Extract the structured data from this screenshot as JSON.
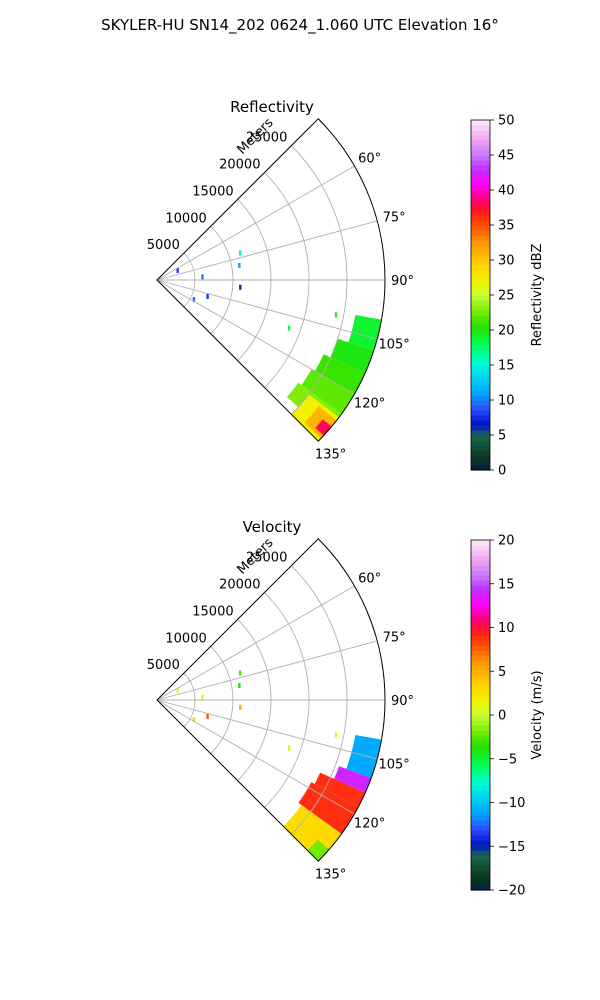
{
  "title": "SKYLER-HU  SN14_202  0624_1.060 UTC Elevation 16°",
  "chart_data": [
    {
      "type": "heatmap",
      "subtype": "polar-sector",
      "title": "Reflectivity",
      "radial_label": "Meters",
      "r_ticks": [
        "5000",
        "10000",
        "15000",
        "20000",
        "25000"
      ],
      "r_range": [
        0,
        30000
      ],
      "theta_range_deg": [
        45,
        135
      ],
      "theta_ticks": [
        "60°",
        "75°",
        "90°",
        "105°",
        "120°",
        "135°"
      ],
      "grid": true,
      "colorbar": {
        "label": "Reflectivity dBZ",
        "range": [
          0,
          50
        ],
        "ticks": [
          "0",
          "5",
          "10",
          "15",
          "20",
          "25",
          "30",
          "35",
          "40",
          "45",
          "50"
        ]
      },
      "echo_region": {
        "azimuth_deg": [
          103,
          135
        ],
        "range_m": [
          23000,
          30000
        ]
      },
      "regions": [
        {
          "azimuth_deg": [
            100,
            108
          ],
          "range_m": [
            26500,
            30000
          ],
          "value": 19
        },
        {
          "azimuth_deg": [
            108,
            114
          ],
          "range_m": [
            25000,
            30000
          ],
          "value": 20
        },
        {
          "azimuth_deg": [
            114,
            120
          ],
          "range_m": [
            24000,
            30000
          ],
          "value": 21
        },
        {
          "azimuth_deg": [
            120,
            126
          ],
          "range_m": [
            23500,
            30000
          ],
          "value": 22
        },
        {
          "azimuth_deg": [
            126,
            132
          ],
          "range_m": [
            23000,
            30000
          ],
          "value": 23
        },
        {
          "azimuth_deg": [
            127,
            135
          ],
          "range_m": [
            25000,
            30000
          ],
          "value": 27
        },
        {
          "azimuth_deg": [
            128,
            134
          ],
          "range_m": [
            27000,
            30000
          ],
          "value": 31
        },
        {
          "azimuth_deg": [
            130,
            133
          ],
          "range_m": [
            28500,
            30000
          ],
          "value": 38
        }
      ],
      "speckles": [
        {
          "azimuth_deg": 72,
          "range_m": 11500,
          "value": 17
        },
        {
          "azimuth_deg": 86,
          "range_m": 6000,
          "value": 10
        },
        {
          "azimuth_deg": 80,
          "range_m": 11000,
          "value": 11
        },
        {
          "azimuth_deg": 101,
          "range_m": 24000,
          "value": 19
        },
        {
          "azimuth_deg": 110,
          "range_m": 18500,
          "value": 18
        },
        {
          "azimuth_deg": 108,
          "range_m": 7000,
          "value": 8
        },
        {
          "azimuth_deg": 118,
          "range_m": 5500,
          "value": 9
        },
        {
          "azimuth_deg": 65,
          "range_m": 3000,
          "value": 8
        },
        {
          "azimuth_deg": 95,
          "range_m": 11000,
          "value": 6
        }
      ]
    },
    {
      "type": "heatmap",
      "subtype": "polar-sector",
      "title": "Velocity",
      "radial_label": "Meters",
      "r_ticks": [
        "5000",
        "10000",
        "15000",
        "20000",
        "25000"
      ],
      "r_range": [
        0,
        30000
      ],
      "theta_range_deg": [
        45,
        135
      ],
      "theta_ticks": [
        "60°",
        "75°",
        "90°",
        "105°",
        "120°",
        "135°"
      ],
      "grid": true,
      "colorbar": {
        "label": "Velocity (m/s)",
        "range": [
          -20,
          20
        ],
        "ticks": [
          "−20",
          "−15",
          "−10",
          "−5",
          "0",
          "5",
          "10",
          "15",
          "20"
        ]
      },
      "echo_region": {
        "azimuth_deg": [
          103,
          135
        ],
        "range_m": [
          23000,
          30000
        ]
      },
      "regions": [
        {
          "azimuth_deg": [
            100,
            110
          ],
          "range_m": [
            26500,
            30000
          ],
          "value": -11
        },
        {
          "azimuth_deg": [
            110,
            114
          ],
          "range_m": [
            25500,
            30000
          ],
          "value": 14
        },
        {
          "azimuth_deg": [
            114,
            118
          ],
          "range_m": [
            23500,
            30000
          ],
          "value": 9
        },
        {
          "azimuth_deg": [
            118,
            126
          ],
          "range_m": [
            23000,
            30000
          ],
          "value": 9
        },
        {
          "azimuth_deg": [
            126,
            135
          ],
          "range_m": [
            23500,
            30000
          ],
          "value": 3
        },
        {
          "azimuth_deg": [
            131,
            135
          ],
          "range_m": [
            28000,
            30000
          ],
          "value": -2
        }
      ],
      "speckles": [
        {
          "azimuth_deg": 72,
          "range_m": 11500,
          "value": -3
        },
        {
          "azimuth_deg": 80,
          "range_m": 11000,
          "value": -4
        },
        {
          "azimuth_deg": 86,
          "range_m": 6000,
          "value": 1
        },
        {
          "azimuth_deg": 101,
          "range_m": 24000,
          "value": 2
        },
        {
          "azimuth_deg": 110,
          "range_m": 18500,
          "value": 1
        },
        {
          "azimuth_deg": 108,
          "range_m": 7000,
          "value": 8
        },
        {
          "azimuth_deg": 118,
          "range_m": 5500,
          "value": 3
        },
        {
          "azimuth_deg": 65,
          "range_m": 3000,
          "value": 0
        },
        {
          "azimuth_deg": 95,
          "range_m": 11000,
          "value": 5
        }
      ]
    }
  ]
}
